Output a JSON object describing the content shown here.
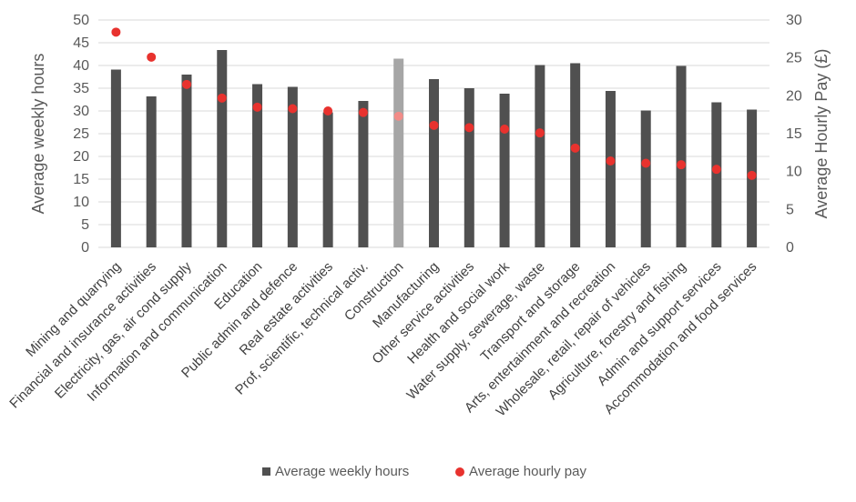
{
  "chart_data": {
    "type": "bar",
    "categories": [
      "Mining and quarrying",
      "Financial and insurance activities",
      "Electricity, gas, air cond supply",
      "Information and communication",
      "Education",
      "Public admin and defence",
      "Real estate activities",
      "Prof, scientific, technical activ.",
      "Construction",
      "Manufacturing",
      "Other service activities",
      "Health and social work",
      "Water supply, sewerage, waste",
      "Transport and storage",
      "Arts, entertainment and recreation",
      "Wholesale, retail, repair of vehicles",
      "Agriculture, forestry and fishing",
      "Admin and support services",
      "Accommodation and food services"
    ],
    "series": [
      {
        "name": "Average weekly hours",
        "kind": "bar",
        "axis": "left",
        "color": "#505050",
        "highlight_color": "#a6a6a6",
        "highlight_index": 8,
        "values": [
          39.1,
          33.2,
          38.0,
          43.4,
          35.9,
          35.3,
          29.7,
          32.2,
          41.5,
          37.0,
          35.0,
          33.8,
          40.1,
          40.5,
          34.4,
          30.1,
          39.9,
          31.9,
          30.3
        ]
      },
      {
        "name": "Average hourly pay",
        "kind": "scatter",
        "axis": "right",
        "color": "#e8322e",
        "highlight_color": "#f28c88",
        "highlight_index": 8,
        "values": [
          28.4,
          25.1,
          21.5,
          19.7,
          18.5,
          18.3,
          18.0,
          17.8,
          17.3,
          16.1,
          15.8,
          15.6,
          15.1,
          13.1,
          11.4,
          11.1,
          10.9,
          10.3,
          9.5
        ]
      }
    ],
    "ylabel": "Average weekly hours",
    "y2label": "Average Hourly Pay (£)",
    "ylim": [
      0,
      50
    ],
    "y2lim": [
      0,
      30
    ],
    "yticks": [
      "0",
      "5",
      "10",
      "15",
      "20",
      "25",
      "30",
      "35",
      "40",
      "45",
      "50"
    ],
    "y2ticks": [
      "0",
      "5",
      "10",
      "15",
      "20",
      "25",
      "30"
    ],
    "grid": true,
    "legend_position": "bottom"
  }
}
